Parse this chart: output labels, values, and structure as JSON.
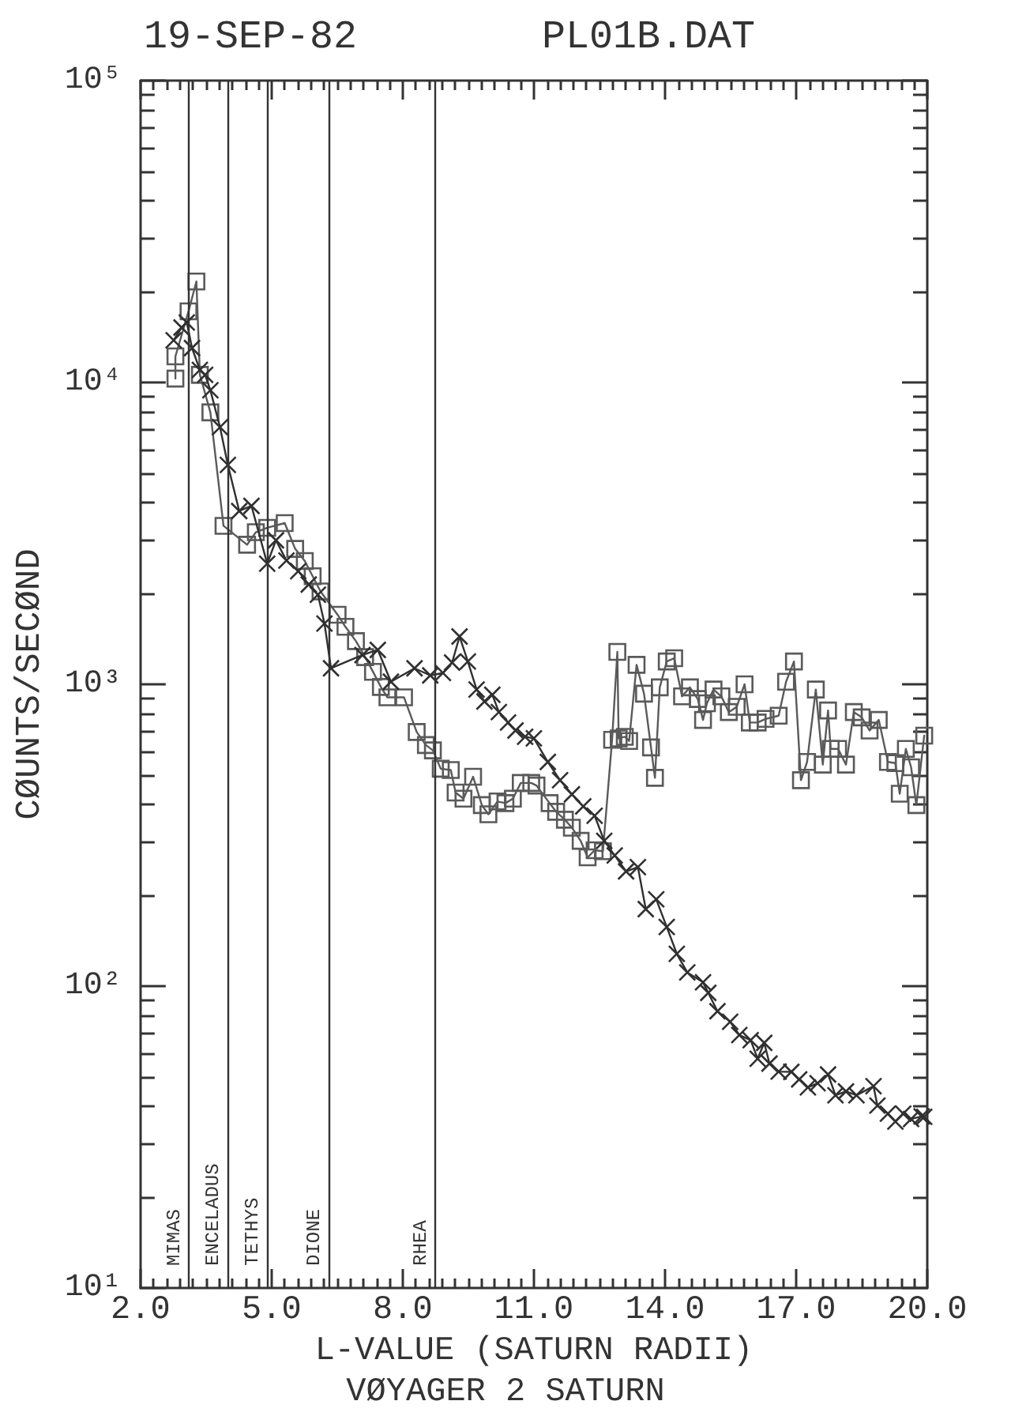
{
  "chart_data": {
    "type": "line",
    "title": "19-SEP-82",
    "subtitle": "PL01B.DAT",
    "xlabel": "L-VALUE (SATURN RADII)",
    "ylabel": "CØUNTS/SECØND",
    "annotations": [
      "VØYAGER 2 SATURN"
    ],
    "xlim": [
      2,
      20
    ],
    "xticks": [
      {
        "value": 2,
        "label": "2.0"
      },
      {
        "value": 5,
        "label": "5.0"
      },
      {
        "value": 8,
        "label": "8.0"
      },
      {
        "value": 11,
        "label": "11.0"
      },
      {
        "value": 14,
        "label": "14.0"
      },
      {
        "value": 17,
        "label": "17.0"
      },
      {
        "value": 20,
        "label": "20.0"
      }
    ],
    "ylim": [
      10,
      100000
    ],
    "yticks": [
      {
        "value": 10,
        "label": "10¹"
      },
      {
        "value": 100,
        "label": "10²"
      },
      {
        "value": 1000,
        "label": "10³"
      },
      {
        "value": 10000,
        "label": "10⁴"
      },
      {
        "value": 100000,
        "label": "10⁵"
      }
    ],
    "log": "y",
    "ref_lines": [
      {
        "axis": "x",
        "value": 3.1,
        "label": "MIMAS"
      },
      {
        "axis": "x",
        "value": 4.0,
        "label": "ENCELADUS"
      },
      {
        "axis": "x",
        "value": 4.9,
        "label": "TETHYS"
      },
      {
        "axis": "x",
        "value": 6.3,
        "label": "DIONE"
      },
      {
        "axis": "x",
        "value": 8.75,
        "label": "RHEA"
      }
    ],
    "series": [
      {
        "color": "#5a5a5a",
        "marker": "square",
        "x": [
          2.8,
          2.8,
          3.1,
          3.28,
          3.36,
          3.6,
          3.9,
          4.44,
          4.64,
          4.9,
          5.3,
          5.54,
          5.76,
          5.94,
          6.12,
          6.51,
          6.69,
          6.93,
          7.14,
          7.32,
          7.5,
          7.65,
          8.03,
          8.32,
          8.53,
          8.69,
          8.87,
          9.1,
          9.21,
          9.39,
          9.61,
          9.81,
          9.96,
          10.17,
          10.35,
          10.52,
          10.7,
          10.94,
          11.06,
          11.36,
          11.51,
          11.71,
          11.87,
          12.07,
          12.23,
          12.39,
          12.58,
          12.79,
          12.91,
          12.94,
          13.08,
          13.18,
          13.35,
          13.52,
          13.68,
          13.77,
          13.88,
          14.04,
          14.21,
          14.39,
          14.57,
          14.75,
          14.87,
          14.96,
          15.11,
          15.29,
          15.46,
          15.64,
          15.82,
          15.94,
          16.12,
          16.3,
          16.6,
          16.77,
          16.95,
          17.11,
          17.25,
          17.45,
          17.61,
          17.73,
          17.79,
          17.96,
          18.14,
          18.32,
          18.5,
          18.68,
          18.89,
          19.1,
          19.27,
          19.37,
          19.51,
          19.63,
          19.75,
          19.93
        ],
        "values": [
          10300,
          12200,
          17200,
          21600,
          10600,
          7960,
          3350,
          2900,
          3190,
          3300,
          3420,
          2810,
          2560,
          2280,
          2030,
          1700,
          1550,
          1390,
          1230,
          1100,
          980,
          905,
          905,
          695,
          629,
          604,
          525,
          520,
          438,
          418,
          494,
          398,
          371,
          409,
          404,
          418,
          471,
          471,
          462,
          404,
          378,
          356,
          335,
          303,
          267,
          282,
          280,
          655,
          1280,
          662,
          670,
          649,
          1160,
          931,
          618,
          490,
          977,
          1190,
          1220,
          912,
          977,
          894,
          762,
          865,
          961,
          912,
          809,
          842,
          1000,
          747,
          747,
          768,
          787,
          1020,
          1190,
          481,
          553,
          961,
          542,
          819,
          611,
          611,
          542,
          809,
          777,
          703,
          762,
          553,
          548,
          434,
          611,
          531,
          398,
          676
        ]
      },
      {
        "color": "#303030",
        "marker": "cross",
        "x": [
          2.76,
          2.94,
          3.06,
          3.18,
          3.36,
          3.48,
          3.6,
          3.82,
          4.0,
          4.26,
          4.54,
          4.9,
          5.1,
          5.34,
          5.61,
          5.85,
          6.06,
          6.21,
          6.36,
          7.08,
          7.43,
          7.73,
          8.27,
          8.63,
          8.92,
          9.13,
          9.3,
          9.49,
          9.69,
          9.87,
          10.05,
          10.2,
          10.41,
          10.58,
          10.8,
          11.0,
          11.32,
          11.6,
          11.87,
          12.13,
          12.39,
          12.61,
          12.85,
          13.11,
          13.38,
          13.56,
          13.8,
          14.04,
          14.27,
          14.51,
          14.87,
          14.99,
          15.2,
          15.49,
          15.7,
          15.96,
          16.12,
          16.27,
          16.39,
          16.6,
          16.89,
          17.07,
          17.27,
          17.49,
          17.73,
          17.9,
          18.14,
          18.38,
          18.77,
          18.86,
          19.1,
          19.27,
          19.45,
          19.63,
          19.87,
          19.93
        ],
        "values": [
          13800,
          15200,
          15800,
          13000,
          11000,
          10600,
          9420,
          7110,
          5330,
          3750,
          3900,
          2510,
          3000,
          2570,
          2370,
          2140,
          1980,
          1590,
          1130,
          1250,
          1300,
          1020,
          1130,
          1070,
          1090,
          1180,
          1440,
          1190,
          961,
          877,
          923,
          809,
          747,
          703,
          670,
          662,
          553,
          481,
          432,
          394,
          367,
          303,
          271,
          240,
          248,
          180,
          194,
          157,
          128,
          111,
          103,
          95,
          82.6,
          76.2,
          68.9,
          66.2,
          57.5,
          64.9,
          55.4,
          52.1,
          52,
          49.1,
          46.2,
          47.7,
          51,
          43.5,
          44.8,
          43.5,
          46.6,
          40.2,
          37.8,
          35.6,
          37.8,
          36.3,
          37,
          36.9
        ]
      }
    ]
  }
}
